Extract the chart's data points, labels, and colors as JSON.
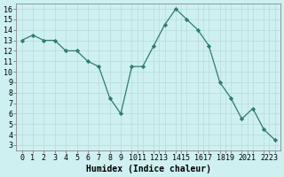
{
  "x": [
    0,
    1,
    2,
    3,
    4,
    5,
    6,
    7,
    8,
    9,
    10,
    11,
    12,
    13,
    14,
    15,
    16,
    17,
    18,
    19,
    20,
    21,
    22,
    23
  ],
  "y": [
    13.0,
    13.5,
    13.0,
    13.0,
    12.0,
    12.0,
    11.0,
    10.5,
    7.5,
    6.0,
    10.5,
    10.5,
    12.5,
    14.5,
    16.0,
    15.0,
    14.0,
    12.5,
    9.0,
    7.5,
    5.5,
    6.5,
    4.5,
    3.5
  ],
  "line_color": "#2e7d6e",
  "marker": "D",
  "marker_size": 2.2,
  "bg_color": "#cff0f0",
  "grid_color": "#b8dada",
  "xlabel": "Humidex (Indice chaleur)",
  "xlim": [
    -0.5,
    23.5
  ],
  "ylim": [
    2.5,
    16.5
  ],
  "yticks": [
    3,
    4,
    5,
    6,
    7,
    8,
    9,
    10,
    11,
    12,
    13,
    14,
    15,
    16
  ],
  "label_fontsize": 7.0,
  "tick_fontsize": 6.0
}
